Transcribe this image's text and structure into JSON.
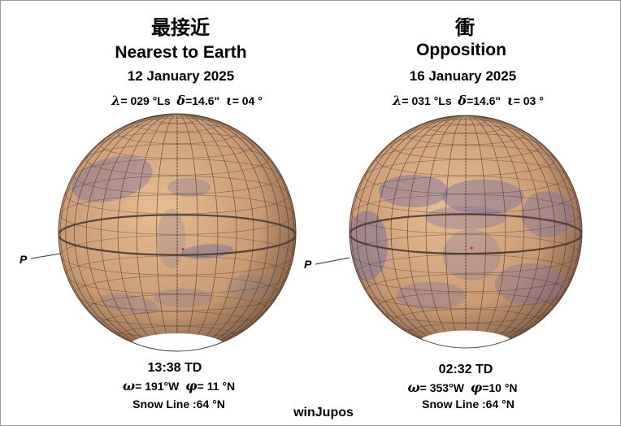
{
  "panels": [
    {
      "jp_title": "最接近",
      "title": "Nearest to Earth",
      "date": "12 January 2025",
      "lambda_sym": "λ",
      "lambda": "= 029 °Ls",
      "delta_sym": "δ",
      "delta": "=14.6\"",
      "iota_sym": "ι",
      "iota": "= 04 °",
      "time": "13:38 TD",
      "omega_sym": "ω",
      "omega": "= 191°W",
      "phi_sym": "φ",
      "phi": "= 11 °N",
      "snow_line": "Snow Line :64 °N",
      "pole_label": "P"
    },
    {
      "jp_title": "衝",
      "title": "Opposition",
      "date": "16 January 2025",
      "lambda_sym": "λ",
      "lambda": "= 031 °Ls",
      "delta_sym": "δ",
      "delta": "=14.6\"",
      "iota_sym": "ι",
      "iota": "= 03 °",
      "time": "02:32 TD",
      "omega_sym": "ω",
      "omega": "= 353°W",
      "phi_sym": "φ",
      "phi": "=10 °N",
      "snow_line": "Snow Line :64 °N",
      "pole_label": "P"
    }
  ],
  "credit": "winJupos",
  "colors": {
    "surface_light": "#e8be94",
    "surface_mid": "#c99a74",
    "surface_dark": "#8a6650",
    "albedo_dark": "#7f739c",
    "grid": "#4a3a30",
    "polar_cap": "#ffffff"
  }
}
